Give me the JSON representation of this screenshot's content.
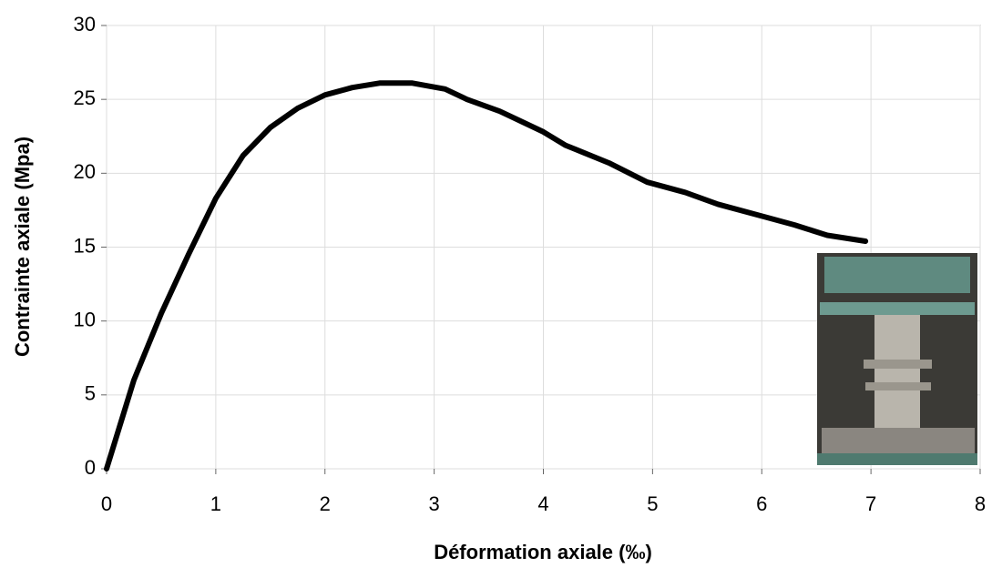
{
  "chart_data": {
    "type": "line",
    "x_label": "Déformation axiale (‰)",
    "y_label": "Contrainte axiale (Mpa)",
    "x": [
      0,
      0.25,
      0.5,
      0.75,
      1,
      1.25,
      1.5,
      1.75,
      2,
      2.25,
      2.5,
      2.8,
      3.1,
      3.3,
      3.6,
      4,
      4.2,
      4.6,
      4.95,
      5.3,
      5.6,
      6,
      6.3,
      6.6,
      6.95
    ],
    "series": [
      {
        "color": "#000000",
        "values": [
          0,
          6,
          10.5,
          14.5,
          18.3,
          21.2,
          23.1,
          24.4,
          25.3,
          25.8,
          26.1,
          26.1,
          25.7,
          25,
          24.2,
          22.8,
          21.9,
          20.7,
          19.4,
          18.7,
          17.9,
          17.1,
          16.5,
          15.8,
          15.4
        ]
      }
    ],
    "xlim": [
      0,
      8
    ],
    "xticks": [
      0,
      1,
      2,
      3,
      4,
      5,
      6,
      7,
      8
    ],
    "ylim": [
      0,
      30
    ],
    "yticks": [
      0,
      5,
      10,
      15,
      20,
      25,
      30
    ],
    "grid": true
  }
}
